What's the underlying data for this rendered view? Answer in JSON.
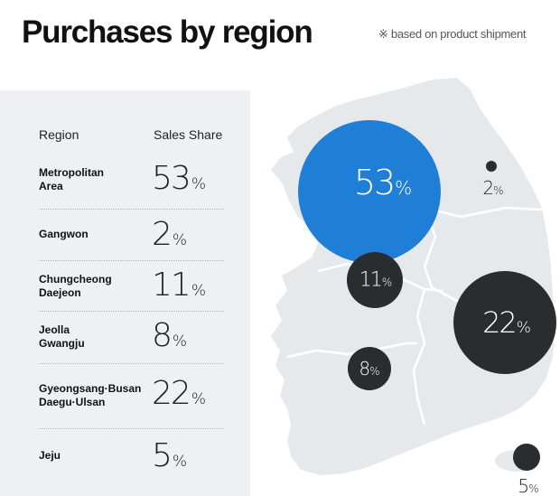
{
  "header": {
    "title": "Purchases by region",
    "note": "※ based on product shipment"
  },
  "table": {
    "col_region": "Region",
    "col_share": "Sales Share",
    "rows": [
      {
        "name": "Metropolitan\nArea",
        "value": "53",
        "unit": "%"
      },
      {
        "name": "Gangwon",
        "value": "2",
        "unit": "%"
      },
      {
        "name": "Chungcheong\nDaejeon",
        "value": "11",
        "unit": "%"
      },
      {
        "name": "Jeolla\nGwangju",
        "value": "8",
        "unit": "%"
      },
      {
        "name": "Gyeongsang·Busan\nDaegu·Ulsan",
        "value": "22",
        "unit": "%"
      },
      {
        "name": "Jeju",
        "value": "5",
        "unit": "%"
      }
    ]
  },
  "map": {
    "bubbles": [
      {
        "region": "Metropolitan Area",
        "value": "53",
        "unit": "%",
        "color": "#1479d6"
      },
      {
        "region": "Gangwon",
        "value": "2",
        "unit": "%",
        "color": "#2a2d30"
      },
      {
        "region": "Chungcheong Daejeon",
        "value": "11",
        "unit": "%",
        "color": "#2a2d30"
      },
      {
        "region": "Jeolla Gwangju",
        "value": "8",
        "unit": "%",
        "color": "#2a2d30"
      },
      {
        "region": "Gyeongsang·Busan Daegu·Ulsan",
        "value": "22",
        "unit": "%",
        "color": "#2a2d30"
      },
      {
        "region": "Jeju",
        "value": "5",
        "unit": "%",
        "color": "#2a2d30"
      }
    ],
    "land_color": "#e6e9ec",
    "border_color": "#ffffff"
  }
}
